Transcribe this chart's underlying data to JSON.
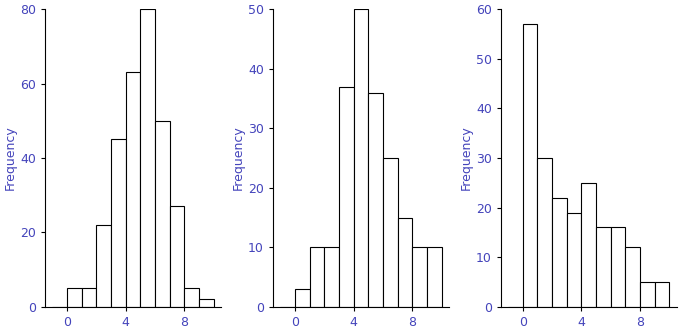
{
  "hist1": {
    "bin_edges": [
      -1,
      0,
      1,
      2,
      3,
      4,
      5,
      6,
      7,
      8,
      9,
      10
    ],
    "frequencies": [
      0,
      5,
      5,
      22,
      45,
      63,
      80,
      50,
      27,
      5,
      2
    ],
    "ylim": [
      0,
      80
    ],
    "yticks": [
      0,
      20,
      40,
      60,
      80
    ],
    "xticks": [
      0,
      4,
      8
    ],
    "xlim": [
      -1.5,
      10.5
    ],
    "ylabel": "Frequency"
  },
  "hist2": {
    "bin_edges": [
      -1,
      0,
      1,
      2,
      3,
      4,
      5,
      6,
      7,
      8,
      9,
      10
    ],
    "frequencies": [
      0,
      3,
      10,
      10,
      37,
      50,
      36,
      25,
      15,
      10,
      10
    ],
    "ylim": [
      0,
      50
    ],
    "yticks": [
      0,
      10,
      20,
      30,
      40,
      50
    ],
    "xticks": [
      0,
      4,
      8
    ],
    "xlim": [
      -1.5,
      10.5
    ],
    "ylabel": "Frequency"
  },
  "hist3": {
    "bin_edges": [
      -1,
      0,
      1,
      2,
      3,
      4,
      5,
      6,
      7,
      8,
      9,
      10
    ],
    "frequencies": [
      0,
      57,
      30,
      22,
      19,
      25,
      16,
      16,
      12,
      5,
      5
    ],
    "ylim": [
      0,
      60
    ],
    "yticks": [
      0,
      10,
      20,
      30,
      40,
      50,
      60
    ],
    "xticks": [
      0,
      4,
      8
    ],
    "xlim": [
      -1.5,
      10.5
    ],
    "ylabel": "Frequency"
  },
  "bar_color": "white",
  "edge_color": "black",
  "background_color": "white",
  "linewidth": 0.8,
  "tick_color": "#4444bb",
  "label_color": "#4444bb",
  "axis_color": "black"
}
